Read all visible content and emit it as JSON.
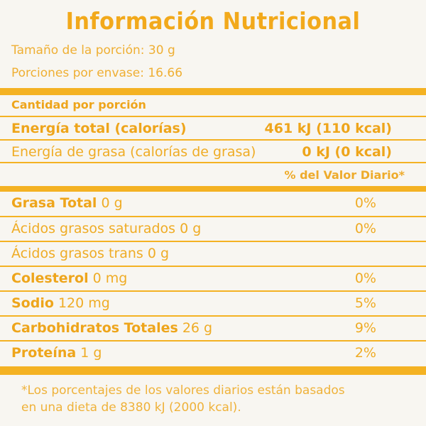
{
  "title": "Información Nutricional",
  "serving_size": "Tamaño de la porción: 30 g",
  "servings_per_container": "Porciones por envase: 16.66",
  "amount_per_serving": "Cantidad por porción",
  "energy": {
    "label": "Energía total (calorías)",
    "value": "461 kJ (110 kcal)"
  },
  "fat_energy": {
    "label": "Energía de grasa (calorías de grasa)",
    "value": "0 kJ (0 kcal)"
  },
  "daily_value_header": "% del Valor Diario*",
  "nutrients": [
    {
      "name": "Grasa Total",
      "amount": "0 g",
      "pct": "0%",
      "bold": true
    },
    {
      "name": "Ácidos grasos saturados",
      "amount": "0 g",
      "pct": "0%",
      "bold": false
    },
    {
      "name": "Ácidos grasos trans",
      "amount": "0 g",
      "pct": "",
      "bold": false
    },
    {
      "name": "Colesterol",
      "amount": "0 mg",
      "pct": "0%",
      "bold": true
    },
    {
      "name": "Sodio",
      "amount": "120 mg",
      "pct": "5%",
      "bold": true
    },
    {
      "name": "Carbohidratos Totales",
      "amount": "26 g",
      "pct": "9%",
      "bold": true
    },
    {
      "name": "Proteína",
      "amount": "1 g",
      "pct": "2%",
      "bold": true
    }
  ],
  "footnote_line1": "*Los porcentajes de los valores diarios están basados",
  "footnote_line2": "en una dieta de 8380 kJ (2000 kcal).",
  "colors": {
    "accent": "#f4b223",
    "text": "#efac25",
    "background": "#f8f6f1"
  }
}
